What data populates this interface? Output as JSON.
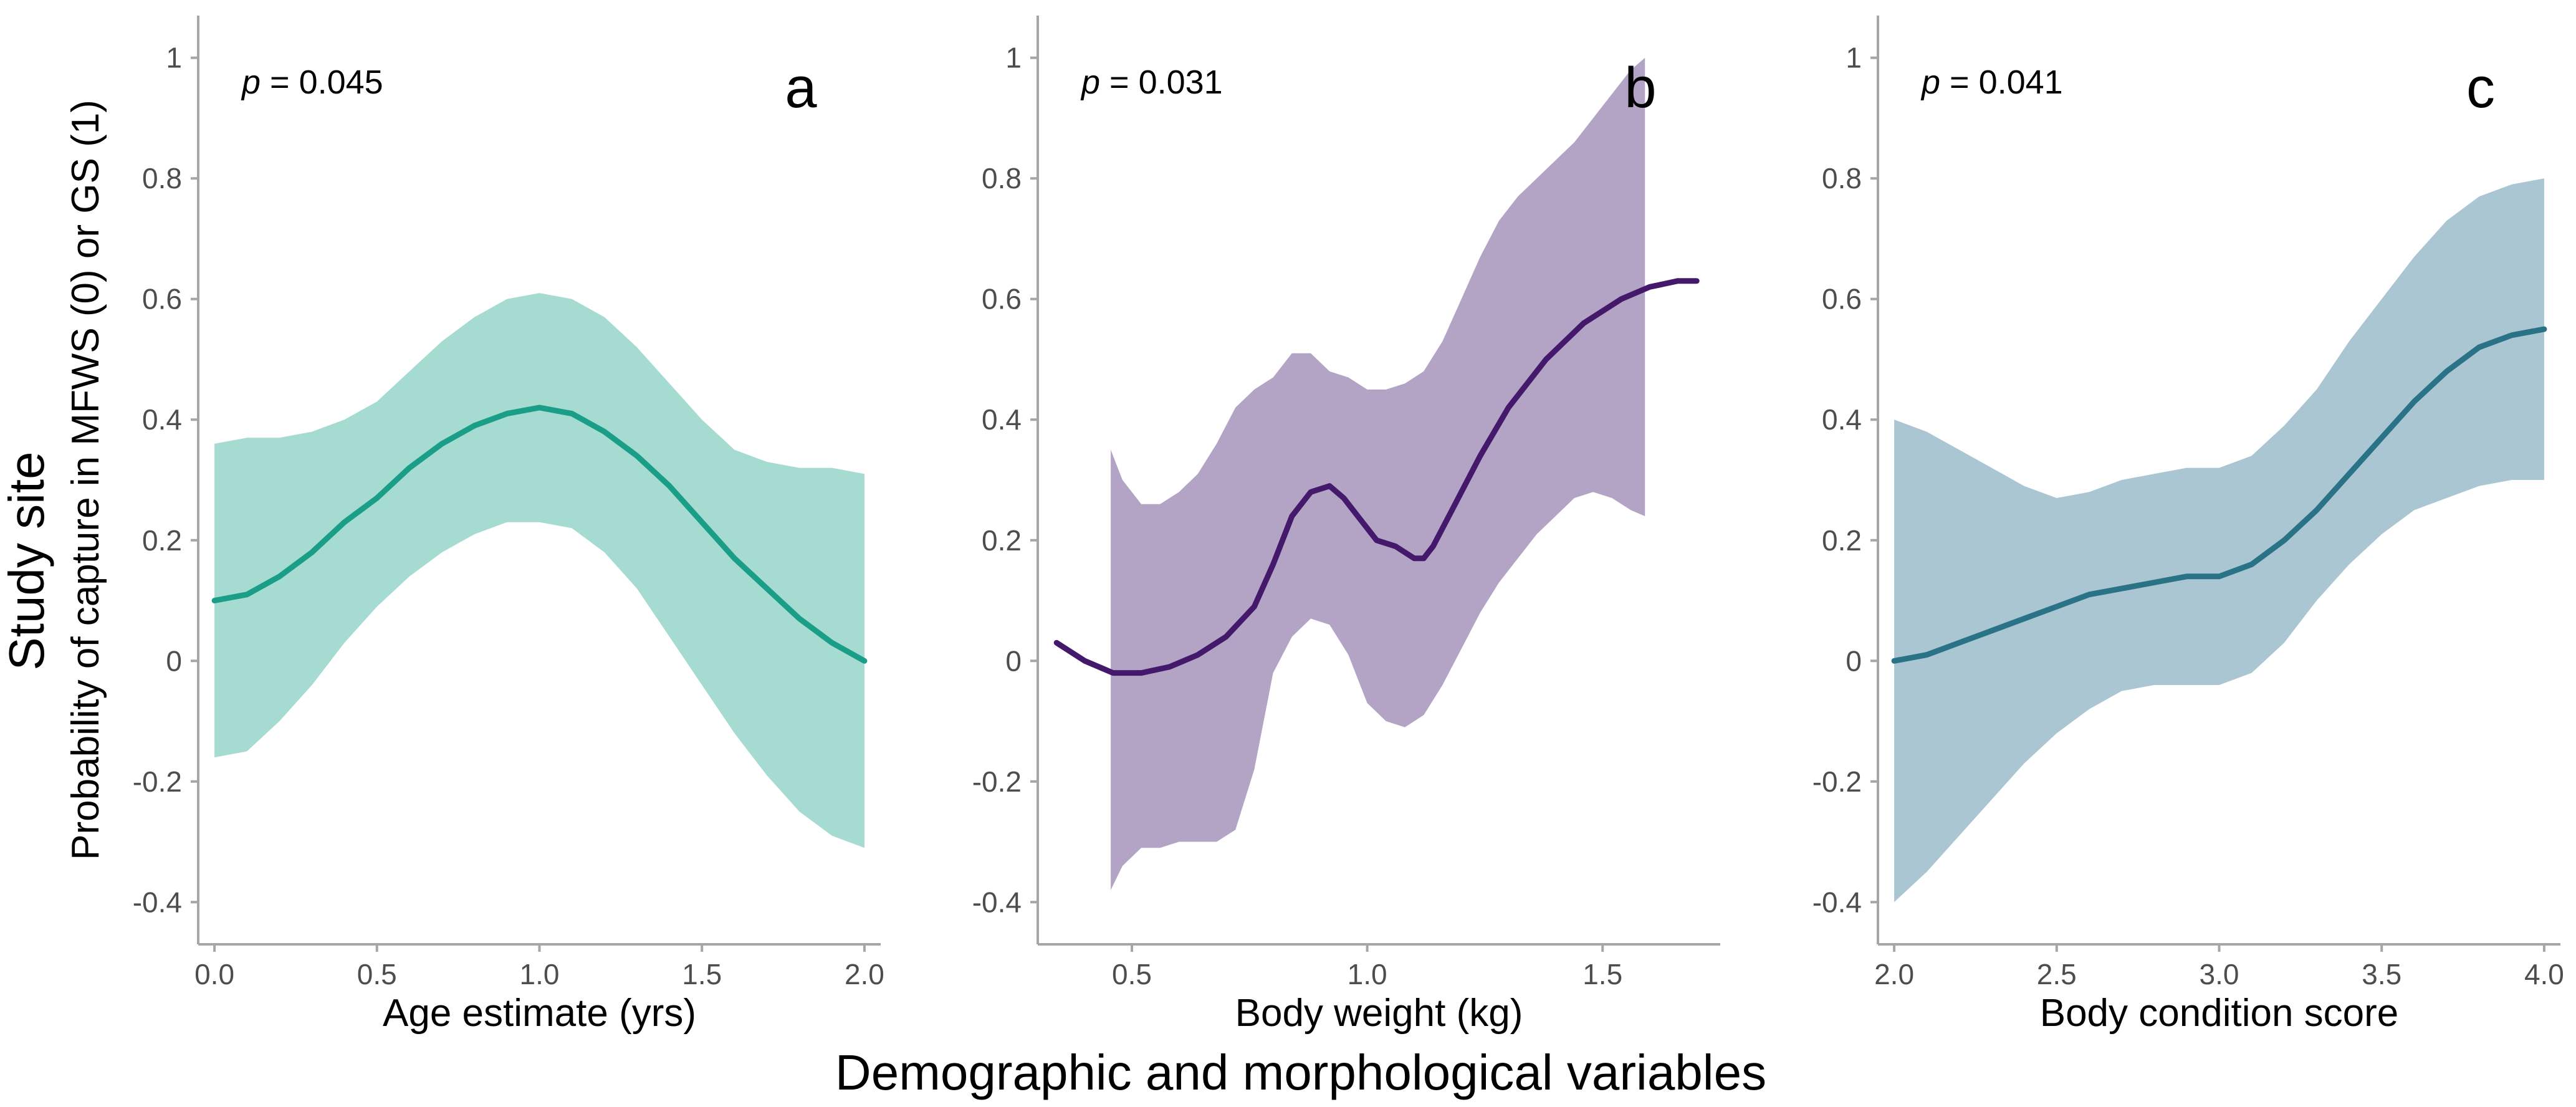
{
  "figure": {
    "y_title_main": "Study site",
    "y_title_sub": "Probability of capture in MFWS (0) or GS (1)",
    "x_title_main": "Demographic and morphological variables"
  },
  "chart_data": [
    {
      "type": "line",
      "panel_label": "a",
      "p_label": "p",
      "p_value": "= 0.045",
      "xlabel": "Age estimate (yrs)",
      "ylabel": "",
      "xlim": [
        -0.05,
        2.05
      ],
      "ylim": [
        -0.47,
        1.07
      ],
      "xticks": [
        0.0,
        0.5,
        1.0,
        1.5,
        2.0
      ],
      "xtick_labels": [
        "0.0",
        "0.5",
        "1.0",
        "1.5",
        "2.0"
      ],
      "yticks": [
        -0.4,
        -0.2,
        0,
        0.2,
        0.4,
        0.6,
        0.8,
        1
      ],
      "ytick_labels": [
        "-0.4",
        "-0.2",
        "0",
        "0.2",
        "0.4",
        "0.6",
        "0.8",
        "1"
      ],
      "line_color": "#1b9e87",
      "band_color": "#a6dbd2",
      "grid": false,
      "series": [
        {
          "x": [
            0.0,
            0.1,
            0.2,
            0.3,
            0.4,
            0.5,
            0.6,
            0.7,
            0.8,
            0.9,
            1.0,
            1.1,
            1.2,
            1.3,
            1.4,
            1.5,
            1.6,
            1.7,
            1.8,
            1.9,
            2.0
          ],
          "y": [
            0.1,
            0.11,
            0.14,
            0.18,
            0.23,
            0.27,
            0.32,
            0.36,
            0.39,
            0.41,
            0.42,
            0.41,
            0.38,
            0.34,
            0.29,
            0.23,
            0.17,
            0.12,
            0.07,
            0.03,
            0.0
          ],
          "lower": [
            -0.16,
            -0.15,
            -0.1,
            -0.04,
            0.03,
            0.09,
            0.14,
            0.18,
            0.21,
            0.23,
            0.23,
            0.22,
            0.18,
            0.12,
            0.04,
            -0.04,
            -0.12,
            -0.19,
            -0.25,
            -0.29,
            -0.31
          ],
          "upper": [
            0.36,
            0.37,
            0.37,
            0.38,
            0.4,
            0.43,
            0.48,
            0.53,
            0.57,
            0.6,
            0.61,
            0.6,
            0.57,
            0.52,
            0.46,
            0.4,
            0.35,
            0.33,
            0.32,
            0.32,
            0.31
          ]
        }
      ]
    },
    {
      "type": "line",
      "panel_label": "b",
      "p_label": "p",
      "p_value": "= 0.031",
      "xlabel": "Body weight (kg)",
      "ylabel": "",
      "xlim": [
        0.3,
        1.75
      ],
      "ylim": [
        -0.47,
        1.07
      ],
      "xticks": [
        0.5,
        1.0,
        1.5
      ],
      "xtick_labels": [
        "0.5",
        "1.0",
        "1.5"
      ],
      "yticks": [
        -0.4,
        -0.2,
        0,
        0.2,
        0.4,
        0.6,
        0.8,
        1
      ],
      "ytick_labels": [
        "-0.4",
        "-0.2",
        "0",
        "0.2",
        "0.4",
        "0.6",
        "0.8",
        "1"
      ],
      "line_color": "#44186b",
      "band_color": "#b3a3c5",
      "grid": false,
      "series": [
        {
          "x": [
            0.34,
            0.4,
            0.46,
            0.52,
            0.58,
            0.64,
            0.7,
            0.76,
            0.8,
            0.84,
            0.88,
            0.92,
            0.95,
            0.98,
            1.02,
            1.06,
            1.08,
            1.1,
            1.12,
            1.14,
            1.18,
            1.24,
            1.3,
            1.38,
            1.46,
            1.54,
            1.6,
            1.66,
            1.7
          ],
          "y": [
            0.03,
            0.0,
            -0.02,
            -0.02,
            -0.01,
            0.01,
            0.04,
            0.09,
            0.16,
            0.24,
            0.28,
            0.29,
            0.27,
            0.24,
            0.2,
            0.19,
            0.18,
            0.17,
            0.17,
            0.19,
            0.25,
            0.34,
            0.42,
            0.5,
            0.56,
            0.6,
            0.62,
            0.63,
            0.63
          ]
        },
        {
          "x": [
            0.455,
            0.48,
            0.52,
            0.56,
            0.6,
            0.64,
            0.68,
            0.72,
            0.76,
            0.8,
            0.84,
            0.88,
            0.92,
            0.96,
            1.0,
            1.04,
            1.08,
            1.12,
            1.16,
            1.2,
            1.24,
            1.28,
            1.32,
            1.36,
            1.4,
            1.44,
            1.48,
            1.52,
            1.56,
            1.59
          ],
          "lower": [
            -0.38,
            -0.34,
            -0.31,
            -0.31,
            -0.3,
            -0.3,
            -0.3,
            -0.28,
            -0.18,
            -0.02,
            0.04,
            0.07,
            0.06,
            0.01,
            -0.07,
            -0.1,
            -0.11,
            -0.09,
            -0.04,
            0.02,
            0.08,
            0.13,
            0.17,
            0.21,
            0.24,
            0.27,
            0.28,
            0.27,
            0.25,
            0.24
          ],
          "upper": [
            0.35,
            0.3,
            0.26,
            0.26,
            0.28,
            0.31,
            0.36,
            0.42,
            0.45,
            0.47,
            0.51,
            0.51,
            0.48,
            0.47,
            0.45,
            0.45,
            0.46,
            0.48,
            0.53,
            0.6,
            0.67,
            0.73,
            0.77,
            0.8,
            0.83,
            0.86,
            0.9,
            0.94,
            0.98,
            1.0
          ]
        }
      ]
    },
    {
      "type": "line",
      "panel_label": "c",
      "p_label": "p",
      "p_value": "= 0.041",
      "xlabel": "Body condition score",
      "ylabel": "",
      "xlim": [
        1.95,
        4.05
      ],
      "ylim": [
        -0.47,
        1.07
      ],
      "xticks": [
        2.0,
        2.5,
        3.0,
        3.5,
        4.0
      ],
      "xtick_labels": [
        "2.0",
        "2.5",
        "3.0",
        "3.5",
        "4.0"
      ],
      "yticks": [
        -0.4,
        -0.2,
        0,
        0.2,
        0.4,
        0.6,
        0.8,
        1
      ],
      "ytick_labels": [
        "-0.4",
        "-0.2",
        "0",
        "0.2",
        "0.4",
        "0.6",
        "0.8",
        "1"
      ],
      "line_color": "#2a7387",
      "band_color": "#a9c6d2",
      "grid": false,
      "series": [
        {
          "x": [
            2.0,
            2.1,
            2.2,
            2.3,
            2.4,
            2.5,
            2.6,
            2.7,
            2.8,
            2.9,
            3.0,
            3.1,
            3.2,
            3.3,
            3.4,
            3.5,
            3.6,
            3.7,
            3.8,
            3.9,
            4.0
          ],
          "y": [
            0.0,
            0.01,
            0.03,
            0.05,
            0.07,
            0.09,
            0.11,
            0.12,
            0.13,
            0.14,
            0.14,
            0.16,
            0.2,
            0.25,
            0.31,
            0.37,
            0.43,
            0.48,
            0.52,
            0.54,
            0.55
          ],
          "lower": [
            -0.4,
            -0.35,
            -0.29,
            -0.23,
            -0.17,
            -0.12,
            -0.08,
            -0.05,
            -0.04,
            -0.04,
            -0.04,
            -0.02,
            0.03,
            0.1,
            0.16,
            0.21,
            0.25,
            0.27,
            0.29,
            0.3,
            0.3
          ],
          "upper": [
            0.4,
            0.38,
            0.35,
            0.32,
            0.29,
            0.27,
            0.28,
            0.3,
            0.31,
            0.32,
            0.32,
            0.34,
            0.39,
            0.45,
            0.53,
            0.6,
            0.67,
            0.73,
            0.77,
            0.79,
            0.8
          ]
        }
      ]
    }
  ]
}
